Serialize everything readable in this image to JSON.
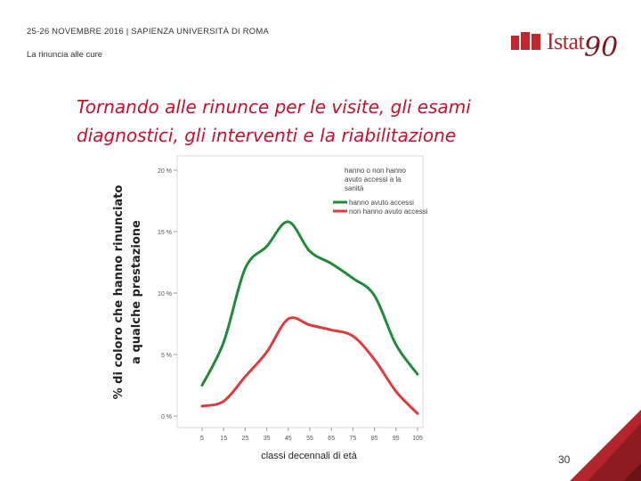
{
  "header": {
    "event": "25-26 NOVEMBRE 2016 | SAPIENZA UNIVERSITÀ DI ROMA",
    "section": "La rinuncia alle cure"
  },
  "logo": {
    "word": "Istat",
    "anniversary": "90"
  },
  "slide": {
    "title": "Tornando alle rinunce  per le visite, gli esami diagnostici, gli interventi e la riabilitazione",
    "page_number": "30"
  },
  "colors": {
    "accent": "#c8102e",
    "green": "#1f8a3a",
    "red": "#e0393e"
  },
  "chart_data": {
    "type": "line",
    "ylabel_line1": "% di coloro che hanno rinunciato",
    "ylabel_line2": "a qualche prestazione",
    "xlabel": "classi decennali di età",
    "legend_title": "hanno o non hanno avuto accessi a la sanità",
    "legend_position": "top-right",
    "x": [
      5,
      15,
      25,
      35,
      45,
      55,
      65,
      75,
      85,
      95,
      105
    ],
    "x_ticks": [
      "5",
      "15",
      "25",
      "35",
      "45",
      "55",
      "65",
      "75",
      "85",
      "95",
      "105"
    ],
    "y_ticks": [
      0,
      5,
      10,
      15,
      20
    ],
    "y_tick_labels": [
      "0 %",
      "5 %",
      "10 %",
      "15 %",
      "20 %"
    ],
    "ylim": [
      0,
      20
    ],
    "series": [
      {
        "name": "hanno avuto accessi",
        "color": "#1f8a3a",
        "values": [
          2.5,
          6.0,
          12.0,
          13.8,
          15.8,
          13.4,
          12.4,
          11.2,
          9.8,
          5.8,
          3.4
        ]
      },
      {
        "name": "non hanno avuto accessi",
        "color": "#e0393e",
        "values": [
          0.8,
          1.2,
          3.2,
          5.2,
          7.9,
          7.4,
          7.0,
          6.5,
          4.6,
          2.0,
          0.2
        ]
      }
    ]
  }
}
